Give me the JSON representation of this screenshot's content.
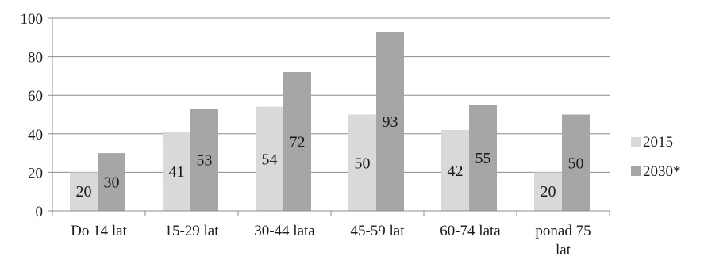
{
  "chart_data": {
    "type": "bar",
    "categories": [
      "Do 14 lat",
      "15-29 lat",
      "30-44 lata",
      "45-59 lat",
      "60-74 lata",
      "ponad 75 lat"
    ],
    "category_lines": [
      [
        "Do 14 lat"
      ],
      [
        "15-29 lat"
      ],
      [
        "30-44 lata"
      ],
      [
        "45-59 lat"
      ],
      [
        "60-74 lata"
      ],
      [
        "ponad 75",
        "lat"
      ]
    ],
    "series": [
      {
        "name": "2015",
        "values": [
          20,
          41,
          54,
          50,
          42,
          20
        ],
        "color": "#d9d9d9"
      },
      {
        "name": "2030*",
        "values": [
          30,
          53,
          72,
          93,
          55,
          50
        ],
        "color": "#a6a6a6"
      }
    ],
    "yticks": [
      0,
      20,
      40,
      60,
      80,
      100
    ],
    "ylim": [
      0,
      100
    ],
    "grid": true,
    "legend_position": "right",
    "data_labels": true,
    "title": "",
    "xlabel": "",
    "ylabel": ""
  }
}
